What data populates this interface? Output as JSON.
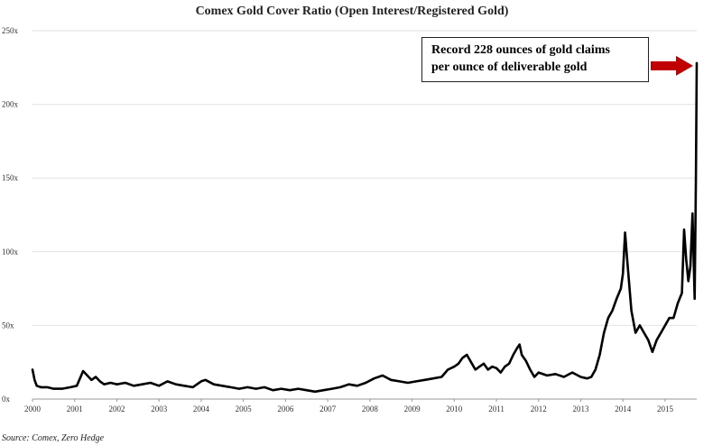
{
  "chart_data": {
    "type": "line",
    "title": "Comex Gold Cover Ratio (Open Interest/Registered Gold)",
    "xlabel": "",
    "ylabel": "",
    "xlim": [
      2000,
      2015.75
    ],
    "ylim": [
      0,
      250
    ],
    "x_ticks": [
      "2000",
      "2001",
      "2002",
      "2003",
      "2004",
      "2005",
      "2006",
      "2007",
      "2008",
      "2009",
      "2010",
      "2011",
      "2012",
      "2013",
      "2014",
      "2015"
    ],
    "y_ticks": [
      "0x",
      "50x",
      "100x",
      "150x",
      "200x",
      "250x"
    ],
    "grid": "horizontal",
    "series": [
      {
        "x": [
          2000.0,
          2000.05,
          2000.1,
          2000.2,
          2000.35,
          2000.5,
          2000.7,
          2000.9,
          2001.05,
          2001.2,
          2001.3,
          2001.4,
          2001.5,
          2001.6,
          2001.7,
          2001.85,
          2002.0,
          2002.2,
          2002.4,
          2002.6,
          2002.8,
          2003.0,
          2003.2,
          2003.4,
          2003.6,
          2003.8,
          2004.0,
          2004.1,
          2004.3,
          2004.5,
          2004.7,
          2004.9,
          2005.1,
          2005.3,
          2005.5,
          2005.7,
          2005.9,
          2006.1,
          2006.3,
          2006.5,
          2006.7,
          2006.9,
          2007.1,
          2007.3,
          2007.5,
          2007.7,
          2007.9,
          2008.1,
          2008.3,
          2008.5,
          2008.7,
          2008.9,
          2009.1,
          2009.3,
          2009.5,
          2009.7,
          2009.85,
          2010.0,
          2010.1,
          2010.2,
          2010.3,
          2010.4,
          2010.5,
          2010.6,
          2010.7,
          2010.8,
          2010.9,
          2011.0,
          2011.1,
          2011.2,
          2011.3,
          2011.4,
          2011.5,
          2011.55,
          2011.6,
          2011.7,
          2011.8,
          2011.9,
          2012.0,
          2012.2,
          2012.4,
          2012.6,
          2012.8,
          2013.0,
          2013.15,
          2013.25,
          2013.35,
          2013.45,
          2013.55,
          2013.65,
          2013.75,
          2013.85,
          2013.95,
          2014.0,
          2014.05,
          2014.1,
          2014.2,
          2014.3,
          2014.4,
          2014.5,
          2014.6,
          2014.7,
          2014.8,
          2014.9,
          2015.0,
          2015.1,
          2015.2,
          2015.3,
          2015.4,
          2015.45,
          2015.5,
          2015.55,
          2015.6,
          2015.65,
          2015.7,
          2015.73,
          2015.75
        ],
        "values": [
          20,
          13,
          9,
          8,
          8,
          7,
          7,
          8,
          9,
          19,
          16,
          13,
          15,
          12,
          10,
          11,
          10,
          11,
          9,
          10,
          11,
          9,
          12,
          10,
          9,
          8,
          12,
          13,
          10,
          9,
          8,
          7,
          8,
          7,
          8,
          6,
          7,
          6,
          7,
          6,
          5,
          6,
          7,
          8,
          10,
          9,
          11,
          14,
          16,
          13,
          12,
          11,
          12,
          13,
          14,
          15,
          20,
          22,
          24,
          28,
          30,
          25,
          20,
          22,
          24,
          20,
          22,
          21,
          18,
          22,
          24,
          30,
          35,
          37,
          30,
          26,
          20,
          15,
          18,
          16,
          17,
          15,
          18,
          15,
          14,
          15,
          20,
          30,
          45,
          55,
          60,
          68,
          75,
          85,
          113,
          95,
          60,
          45,
          50,
          45,
          40,
          32,
          40,
          45,
          50,
          55,
          55,
          65,
          72,
          115,
          95,
          80,
          90,
          126,
          68,
          150,
          228
        ]
      }
    ],
    "annotation": {
      "line1": "Record 228 ounces of gold claims",
      "line2": "per ounce of deliverable gold",
      "arrow_color": "#c00000"
    },
    "source": "Source: Comex, Zero Hedge"
  }
}
